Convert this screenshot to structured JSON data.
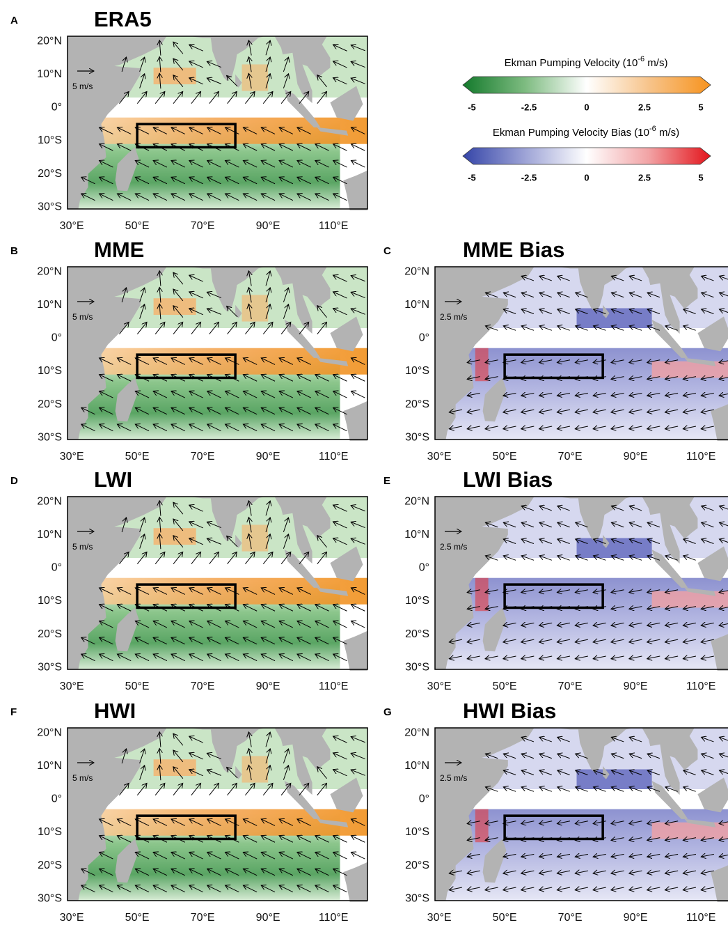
{
  "velocity_panels": [
    {
      "letter": "A",
      "title": "ERA5",
      "scale": "5 m/s"
    },
    {
      "letter": "B",
      "title": "MME",
      "scale": "5 m/s"
    },
    {
      "letter": "D",
      "title": "LWI",
      "scale": "5 m/s"
    },
    {
      "letter": "F",
      "title": "HWI",
      "scale": "5 m/s"
    }
  ],
  "bias_panels": [
    {
      "letter": "C",
      "title": "MME Bias",
      "scale": "2.5 m/s"
    },
    {
      "letter": "E",
      "title": "LWI Bias",
      "scale": "2.5 m/s"
    },
    {
      "letter": "G",
      "title": "HWI Bias",
      "scale": "2.5 m/s"
    }
  ],
  "lat_labels": [
    "20°N",
    "10°N",
    "0°",
    "10°S",
    "20°S",
    "30°S"
  ],
  "lon_labels": [
    "30°E",
    "50°E",
    "70°E",
    "90°E",
    "110°E"
  ],
  "colorbars": [
    {
      "title": "Ekman Pumping Velocity (10",
      "exponent": "-6",
      "unit": " m/s)",
      "ticks": [
        "-5",
        "-2.5",
        "0",
        "2.5",
        "5"
      ]
    },
    {
      "title": "Ekman Pumping Velocity Bias (10",
      "exponent": "-6",
      "unit": " m/s)",
      "ticks": [
        "-5",
        "-2.5",
        "0",
        "2.5",
        "5"
      ]
    }
  ]
}
